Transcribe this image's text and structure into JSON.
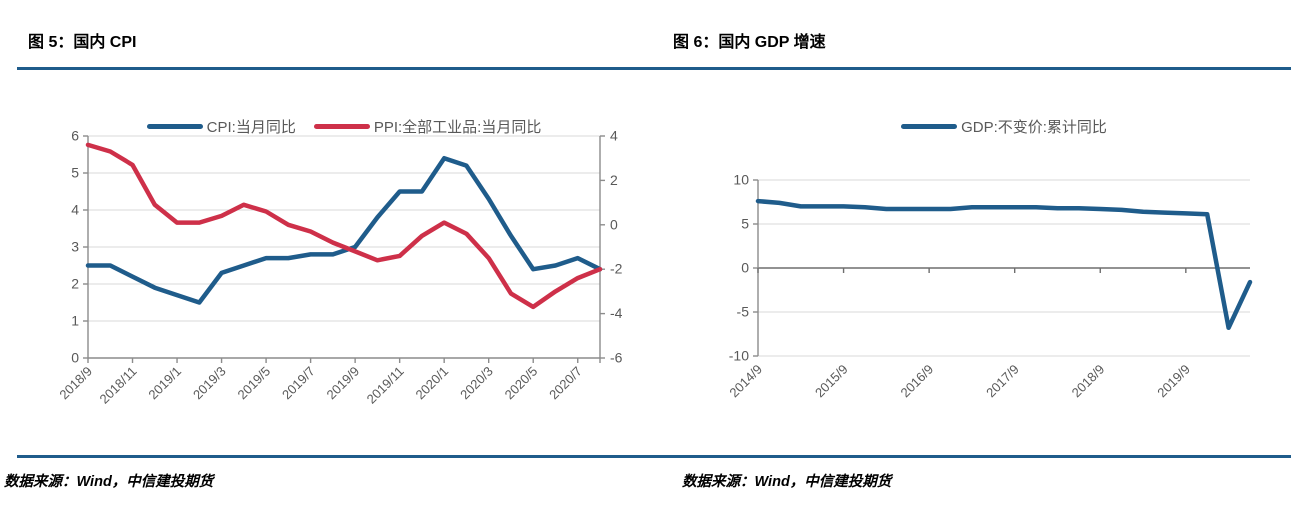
{
  "colors": {
    "accent_blue": "#1F5C8B",
    "series_red": "#CE3049",
    "rule_blue": "#1F5C8B",
    "grid": "#D9D9D9",
    "axis": "#8C8C8C",
    "zero_axis": "#6E6E6E",
    "tick_text": "#595959",
    "legend_text": "#595959"
  },
  "figures": [
    {
      "title": "图 5：国内 CPI",
      "source": "数据来源：Wind，中信建投期货"
    },
    {
      "title": "图 6：国内 GDP 增速",
      "source": "数据来源：Wind，中信建投期货"
    }
  ],
  "chart_data": [
    {
      "id": "cpi-ppi",
      "type": "line",
      "title": "图 5：国内 CPI",
      "categories": [
        "2018/9",
        "2018/10",
        "2018/11",
        "2018/12",
        "2019/1",
        "2019/2",
        "2019/3",
        "2019/4",
        "2019/5",
        "2019/6",
        "2019/7",
        "2019/8",
        "2019/9",
        "2019/10",
        "2019/11",
        "2019/12",
        "2020/1",
        "2020/2",
        "2020/3",
        "2020/4",
        "2020/5",
        "2020/6",
        "2020/7",
        "2020/8"
      ],
      "series": [
        {
          "name": "CPI:当月同比",
          "axis": "left",
          "color_key": "accent_blue",
          "values": [
            2.5,
            2.5,
            2.2,
            1.9,
            1.7,
            1.5,
            2.3,
            2.5,
            2.7,
            2.7,
            2.8,
            2.8,
            3.0,
            3.8,
            4.5,
            4.5,
            5.4,
            5.2,
            4.3,
            3.3,
            2.4,
            2.5,
            2.7,
            2.4
          ]
        },
        {
          "name": "PPI:全部工业品:当月同比",
          "axis": "right",
          "color_key": "series_red",
          "values": [
            3.6,
            3.3,
            2.7,
            0.9,
            0.1,
            0.1,
            0.4,
            0.9,
            0.6,
            0.0,
            -0.3,
            -0.8,
            -1.2,
            -1.6,
            -1.4,
            -0.5,
            0.1,
            -0.4,
            -1.5,
            -3.1,
            -3.7,
            -3.0,
            -2.4,
            -2.0
          ]
        }
      ],
      "axes": {
        "left": {
          "min": 0,
          "max": 6,
          "step": 1
        },
        "right": {
          "min": -6,
          "max": 4,
          "step": 2
        }
      },
      "x_axis_at": 0,
      "x_label_every": 2,
      "x_end_tick": true,
      "grid": true,
      "legend_position": "top"
    },
    {
      "id": "gdp",
      "type": "line",
      "title": "图 6：国内 GDP 增速",
      "categories": [
        "2014/9",
        "2014/12",
        "2015/3",
        "2015/6",
        "2015/9",
        "2015/12",
        "2016/3",
        "2016/6",
        "2016/9",
        "2016/12",
        "2017/3",
        "2017/6",
        "2017/9",
        "2017/12",
        "2018/3",
        "2018/6",
        "2018/9",
        "2018/12",
        "2019/3",
        "2019/6",
        "2019/9",
        "2019/12",
        "2020/3",
        "2020/6"
      ],
      "series": [
        {
          "name": "GDP:不变价:累计同比",
          "axis": "left",
          "color_key": "accent_blue",
          "values": [
            7.6,
            7.4,
            7.0,
            7.0,
            7.0,
            6.9,
            6.7,
            6.7,
            6.7,
            6.7,
            6.9,
            6.9,
            6.9,
            6.9,
            6.8,
            6.8,
            6.7,
            6.6,
            6.4,
            6.3,
            6.2,
            6.1,
            -6.8,
            -1.6
          ]
        }
      ],
      "axes": {
        "left": {
          "min": -10,
          "max": 10,
          "step": 5
        }
      },
      "x_axis_at": 0,
      "x_label_every": 4,
      "x_end_tick": false,
      "grid": true,
      "legend_position": "top"
    }
  ]
}
